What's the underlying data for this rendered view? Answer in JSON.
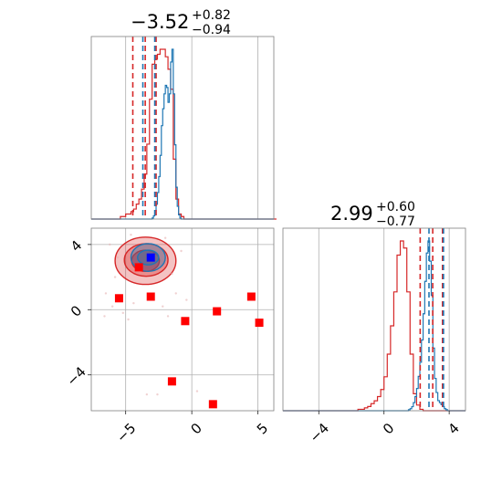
{
  "chart_data": {
    "type": "corner",
    "colors": {
      "posterior_a": "#d62728",
      "posterior_b": "#1f77b4",
      "points": "#ff0000",
      "truth": "#0000ff"
    },
    "grid": true,
    "param1": {
      "title_value": "−3.52",
      "title_plus": "+0.82",
      "title_minus": "−0.94",
      "range": [
        -7.6,
        6.2
      ],
      "ticks": [
        -5,
        0,
        5
      ],
      "tick_labels": [
        "−5",
        "0",
        "5"
      ],
      "red_quantiles": [
        -4.46,
        -3.52,
        -2.7
      ],
      "blue_quantiles": [
        -3.7,
        -2.8
      ],
      "hist_red": {
        "bin_start": -7.6,
        "bin_width": 0.2,
        "values": [
          0,
          0,
          0,
          0,
          0,
          0,
          0,
          0,
          0,
          0,
          0,
          1,
          1,
          2,
          2,
          3,
          4,
          6,
          8,
          12,
          18,
          30,
          48,
          62,
          64,
          66,
          68,
          68,
          65,
          60,
          52,
          24,
          8,
          2,
          1,
          0,
          0,
          0,
          0,
          0,
          0,
          0,
          0,
          0,
          0,
          0,
          0,
          0,
          0,
          0,
          0,
          0,
          0,
          0,
          0,
          0,
          0,
          0,
          0,
          0,
          0,
          0,
          0,
          0,
          0,
          0,
          0,
          0,
          0,
          0
        ]
      },
      "hist_blue": {
        "bin_start": -7.6,
        "bin_width": 0.1,
        "values": [
          0,
          0,
          0,
          0,
          0,
          0,
          0,
          0,
          0,
          0,
          0,
          0,
          0,
          0,
          0,
          0,
          0,
          0,
          0,
          0,
          0,
          0,
          0,
          0,
          0,
          0,
          0,
          0,
          0,
          0,
          0,
          0,
          0,
          0,
          0,
          0,
          0,
          0,
          0,
          0,
          0,
          0,
          0,
          0,
          0,
          0,
          1,
          3,
          8,
          14,
          25,
          40,
          60,
          88,
          104,
          118,
          126,
          124,
          110,
          118,
          148,
          160,
          118,
          70,
          30,
          12,
          4,
          1,
          0,
          0,
          0
        ]
      }
    },
    "param2": {
      "title_value": "2.99",
      "title_plus": "+0.60",
      "title_minus": "−0.77",
      "range": [
        -6.2,
        5.0
      ],
      "ticks": [
        -4,
        0,
        4
      ],
      "tick_labels": [
        "−4",
        "0",
        "4"
      ],
      "red_quantiles": [
        2.22,
        2.99,
        3.59
      ],
      "blue_quantiles": [
        2.76,
        3.65
      ],
      "hist_red": {
        "bin_start": -6.2,
        "bin_width": 0.2,
        "values": [
          0,
          0,
          0,
          0,
          0,
          0,
          0,
          0,
          0,
          0,
          0,
          0,
          0,
          0,
          0,
          0,
          0,
          0,
          0,
          0,
          0,
          0,
          0,
          1,
          1,
          2,
          3,
          5,
          7,
          10,
          15,
          24,
          40,
          60,
          84,
          110,
          120,
          115,
          84,
          40,
          12,
          4,
          1,
          0,
          0,
          0,
          0,
          0,
          0,
          0,
          0,
          0,
          0,
          0,
          0,
          0
        ]
      },
      "hist_blue": {
        "bin_start": -6.2,
        "bin_width": 0.1,
        "values": [
          0,
          0,
          0,
          0,
          0,
          0,
          0,
          0,
          0,
          0,
          0,
          0,
          0,
          0,
          0,
          0,
          0,
          0,
          0,
          0,
          0,
          0,
          0,
          0,
          0,
          0,
          0,
          0,
          0,
          0,
          0,
          0,
          0,
          0,
          0,
          0,
          0,
          0,
          0,
          0,
          0,
          0,
          0,
          0,
          0,
          0,
          0,
          0,
          0,
          0,
          0,
          0,
          0,
          0,
          0,
          0,
          0,
          0,
          0,
          0,
          0,
          0,
          0,
          0,
          0,
          0,
          0,
          0,
          0,
          0,
          0,
          0,
          0,
          0,
          0,
          0,
          0,
          1,
          2,
          4,
          8,
          14,
          22,
          34,
          48,
          70,
          96,
          128,
          156,
          168,
          148,
          114,
          62,
          32,
          18,
          10,
          8,
          6,
          4,
          2,
          1,
          0
        ]
      }
    },
    "joint": {
      "contours_red": [
        {
          "cx": -3.5,
          "cy": 3.0,
          "rx": 2.3,
          "ry": 1.45,
          "level": "outer"
        },
        {
          "cx": -3.45,
          "cy": 3.05,
          "rx": 1.65,
          "ry": 1.0,
          "level": "middle"
        },
        {
          "cx": -3.5,
          "cy": 3.0,
          "rx": 1.05,
          "ry": 0.65,
          "level": "inner"
        }
      ],
      "contours_blue": [
        {
          "cx": -3.3,
          "cy": 3.2,
          "rx": 1.3,
          "ry": 0.85
        },
        {
          "cx": -3.3,
          "cy": 3.2,
          "rx": 0.8,
          "ry": 0.45
        }
      ],
      "truth": {
        "x": -3.1,
        "y": 3.2
      },
      "points": [
        {
          "x": -4.0,
          "y": 2.6
        },
        {
          "x": -5.5,
          "y": 0.7
        },
        {
          "x": -3.1,
          "y": 0.8
        },
        {
          "x": -0.5,
          "y": -0.7
        },
        {
          "x": 1.9,
          "y": -0.1
        },
        {
          "x": 4.5,
          "y": 0.8
        },
        {
          "x": 5.1,
          "y": -0.8
        },
        {
          "x": -1.5,
          "y": -4.4
        },
        {
          "x": 1.6,
          "y": -5.8
        }
      ],
      "faint_points": [
        {
          "x": -6.2,
          "y": 4.0
        },
        {
          "x": -5.8,
          "y": 2.0
        },
        {
          "x": -6.5,
          "y": 1.0
        },
        {
          "x": -5.2,
          "y": -0.2
        },
        {
          "x": -4.8,
          "y": -0.6
        },
        {
          "x": -6.0,
          "y": 0.2
        },
        {
          "x": -1.5,
          "y": 2.2
        },
        {
          "x": -0.8,
          "y": 3.6
        },
        {
          "x": -1.2,
          "y": 1.0
        },
        {
          "x": -2.2,
          "y": 0.2
        },
        {
          "x": -5.6,
          "y": 3.2
        },
        {
          "x": -4.4,
          "y": 0.4
        },
        {
          "x": -0.4,
          "y": 0.6
        },
        {
          "x": -2.6,
          "y": -5.2
        },
        {
          "x": 0.4,
          "y": -5.0
        },
        {
          "x": -3.4,
          "y": -5.2
        },
        {
          "x": -6.6,
          "y": -0.4
        },
        {
          "x": -2.0,
          "y": 4.4
        },
        {
          "x": -4.6,
          "y": 4.6
        },
        {
          "x": -1.8,
          "y": -0.4
        }
      ]
    }
  }
}
